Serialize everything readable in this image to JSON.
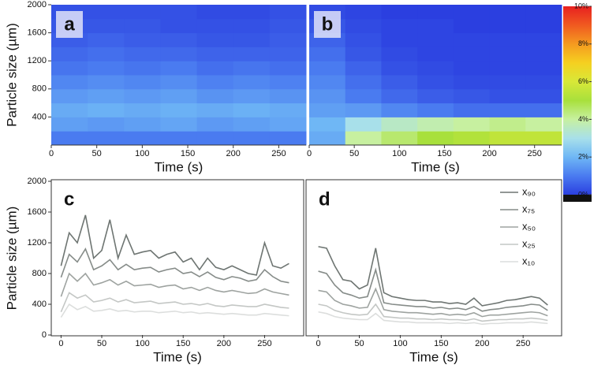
{
  "chart_data": [
    {
      "type": "heatmap",
      "label": "a",
      "x_label": "Time (s)",
      "y_label": "Particle size (µm)",
      "xbins": [
        0,
        40,
        80,
        120,
        160,
        200,
        240,
        280
      ],
      "ybins": [
        0,
        200,
        400,
        600,
        800,
        1000,
        1200,
        1400,
        1600,
        1800,
        2000
      ],
      "z": [
        [
          1.0,
          1.0,
          1.0,
          1.0,
          1.0,
          1.0,
          1.0
        ],
        [
          1.6,
          1.5,
          1.6,
          1.7,
          1.5,
          1.6,
          1.7
        ],
        [
          1.8,
          1.9,
          1.8,
          1.9,
          1.8,
          1.9,
          1.8
        ],
        [
          1.5,
          1.6,
          1.5,
          1.6,
          1.4,
          1.5,
          1.4
        ],
        [
          1.2,
          1.3,
          1.2,
          1.3,
          1.1,
          1.2,
          1.1
        ],
        [
          0.9,
          1.0,
          0.9,
          1.0,
          0.8,
          0.9,
          0.8
        ],
        [
          0.7,
          0.8,
          0.7,
          0.7,
          0.6,
          0.6,
          0.6
        ],
        [
          0.5,
          0.6,
          0.5,
          0.5,
          0.4,
          0.4,
          0.5
        ],
        [
          0.4,
          0.4,
          0.4,
          0.3,
          0.3,
          0.3,
          0.4
        ],
        [
          0.3,
          0.3,
          0.3,
          0.3,
          0.2,
          0.2,
          0.3
        ]
      ],
      "xlim": [
        0,
        280
      ],
      "ylim": [
        0,
        2000
      ],
      "xticks": [
        0,
        50,
        100,
        150,
        200,
        250
      ],
      "yticks": [
        400,
        800,
        1200,
        1600,
        2000
      ]
    },
    {
      "type": "heatmap",
      "label": "b",
      "x_label": "Time (s)",
      "xbins": [
        0,
        40,
        80,
        120,
        160,
        200,
        240,
        280
      ],
      "ybins": [
        0,
        200,
        400,
        600,
        800,
        1000,
        1200,
        1400,
        1600,
        1800,
        2000
      ],
      "z": [
        [
          1.8,
          4.0,
          4.5,
          5.0,
          5.2,
          5.5,
          5.5
        ],
        [
          2.0,
          3.0,
          3.5,
          3.8,
          4.0,
          4.2,
          4.0
        ],
        [
          1.6,
          1.5,
          1.2,
          1.0,
          0.8,
          0.8,
          0.8
        ],
        [
          1.4,
          1.0,
          0.7,
          0.5,
          0.4,
          0.3,
          0.3
        ],
        [
          1.2,
          0.8,
          0.5,
          0.3,
          0.2,
          0.2,
          0.2
        ],
        [
          1.0,
          0.6,
          0.3,
          0.2,
          0.1,
          0.1,
          0.1
        ],
        [
          0.8,
          0.4,
          0.2,
          0.1,
          0.1,
          0.1,
          0.1
        ],
        [
          0.6,
          0.3,
          0.1,
          0.1,
          0.1,
          0.1,
          0.1
        ],
        [
          0.4,
          0.2,
          0.1,
          0.1,
          0,
          0,
          0
        ],
        [
          0.2,
          0.1,
          0,
          0,
          0,
          0,
          0
        ]
      ],
      "xlim": [
        0,
        280
      ],
      "ylim": [
        0,
        2000
      ],
      "xticks": [
        0,
        50,
        100,
        150,
        200,
        250
      ]
    },
    {
      "type": "colorbar",
      "colors": [
        "#2b3fe0",
        "#4a7bf0",
        "#6fb7f5",
        "#a8e0ea",
        "#c7f0a0",
        "#a8e03c",
        "#d8e838",
        "#f5d020",
        "#f59a20",
        "#f05a20",
        "#e82020"
      ],
      "ylim": [
        0,
        10
      ],
      "yticks": [
        {
          "value": 0,
          "label": "0%"
        },
        {
          "value": 2,
          "label": "2%"
        },
        {
          "value": 4,
          "label": "4%"
        },
        {
          "value": 6,
          "label": "6%"
        },
        {
          "value": 8,
          "label": "8%"
        },
        {
          "value": 10,
          "label": "10%"
        }
      ]
    },
    {
      "type": "line",
      "label": "c",
      "x_label": "Time (s)",
      "y_label": "Particle size (µm)",
      "x": [
        0,
        10,
        20,
        30,
        40,
        50,
        60,
        70,
        80,
        90,
        100,
        110,
        120,
        130,
        140,
        150,
        160,
        170,
        180,
        190,
        200,
        210,
        220,
        230,
        240,
        250,
        260,
        270,
        280
      ],
      "series": [
        {
          "name": "x₉₀",
          "color": "#6e7572",
          "values": [
            900,
            1330,
            1200,
            1560,
            1000,
            1100,
            1500,
            1000,
            1300,
            1050,
            1080,
            1100,
            1000,
            1050,
            1080,
            950,
            1000,
            850,
            1000,
            880,
            850,
            900,
            850,
            800,
            780,
            1200,
            900,
            870,
            930
          ]
        },
        {
          "name": "x₇₅",
          "color": "#868c89",
          "values": [
            750,
            1050,
            950,
            1120,
            850,
            900,
            980,
            850,
            920,
            850,
            870,
            880,
            820,
            850,
            870,
            800,
            820,
            760,
            820,
            750,
            720,
            760,
            740,
            700,
            720,
            850,
            760,
            700,
            680
          ]
        },
        {
          "name": "x₅₀",
          "color": "#9ea3a0",
          "values": [
            500,
            800,
            700,
            800,
            650,
            680,
            720,
            650,
            700,
            640,
            650,
            660,
            620,
            640,
            650,
            600,
            620,
            580,
            620,
            580,
            560,
            580,
            560,
            540,
            550,
            600,
            560,
            540,
            520
          ]
        },
        {
          "name": "x₂₅",
          "color": "#c4c7c5",
          "values": [
            300,
            550,
            480,
            520,
            430,
            450,
            480,
            430,
            460,
            420,
            430,
            440,
            410,
            420,
            430,
            400,
            410,
            390,
            410,
            380,
            370,
            390,
            380,
            370,
            370,
            400,
            380,
            360,
            350
          ]
        },
        {
          "name": "x₁₀",
          "color": "#dcdedd",
          "values": [
            230,
            400,
            330,
            370,
            310,
            320,
            340,
            310,
            320,
            300,
            310,
            310,
            290,
            300,
            310,
            290,
            300,
            280,
            290,
            280,
            270,
            280,
            270,
            260,
            260,
            280,
            270,
            260,
            250
          ]
        }
      ],
      "xlim": [
        -12,
        298
      ],
      "ylim": [
        0,
        2000
      ],
      "xticks": [
        0,
        50,
        100,
        150,
        200,
        250
      ],
      "yticks": [
        0,
        400,
        800,
        1200,
        1600,
        2000
      ]
    },
    {
      "type": "line",
      "label": "d",
      "x_label": "Time (s)",
      "legend": "upper right",
      "x": [
        0,
        10,
        20,
        30,
        40,
        50,
        60,
        70,
        80,
        90,
        100,
        110,
        120,
        130,
        140,
        150,
        160,
        170,
        180,
        190,
        200,
        210,
        220,
        230,
        240,
        250,
        260,
        270,
        280
      ],
      "series": [
        {
          "name": "x₉₀",
          "color": "#6e7572",
          "values": [
            1150,
            1130,
            900,
            720,
            700,
            600,
            650,
            1130,
            550,
            500,
            480,
            460,
            450,
            450,
            430,
            430,
            410,
            420,
            400,
            480,
            380,
            400,
            420,
            450,
            460,
            480,
            500,
            480,
            390
          ]
        },
        {
          "name": "x₇₅",
          "color": "#868c89",
          "values": [
            830,
            800,
            650,
            550,
            520,
            480,
            500,
            850,
            420,
            400,
            390,
            380,
            370,
            370,
            350,
            360,
            340,
            350,
            330,
            370,
            310,
            330,
            340,
            360,
            370,
            380,
            400,
            390,
            320
          ]
        },
        {
          "name": "x₅₀",
          "color": "#9ea3a0",
          "values": [
            580,
            560,
            450,
            400,
            380,
            350,
            360,
            600,
            330,
            310,
            300,
            290,
            290,
            280,
            270,
            280,
            260,
            270,
            260,
            290,
            240,
            260,
            260,
            270,
            280,
            290,
            300,
            290,
            250
          ]
        },
        {
          "name": "x₂₅",
          "color": "#c4c7c5",
          "values": [
            400,
            380,
            320,
            290,
            270,
            260,
            270,
            400,
            240,
            230,
            220,
            220,
            210,
            210,
            200,
            210,
            200,
            200,
            190,
            210,
            180,
            190,
            200,
            200,
            210,
            210,
            220,
            210,
            190
          ]
        },
        {
          "name": "x₁₀",
          "color": "#dcdedd",
          "values": [
            300,
            280,
            240,
            220,
            210,
            200,
            200,
            280,
            190,
            180,
            170,
            170,
            160,
            160,
            160,
            160,
            150,
            160,
            150,
            160,
            140,
            150,
            150,
            160,
            160,
            160,
            170,
            160,
            150
          ]
        }
      ],
      "xlim": [
        -15,
        297
      ],
      "ylim": [
        0,
        2000
      ],
      "xticks": [
        0,
        50,
        100,
        150,
        200,
        250
      ]
    }
  ]
}
